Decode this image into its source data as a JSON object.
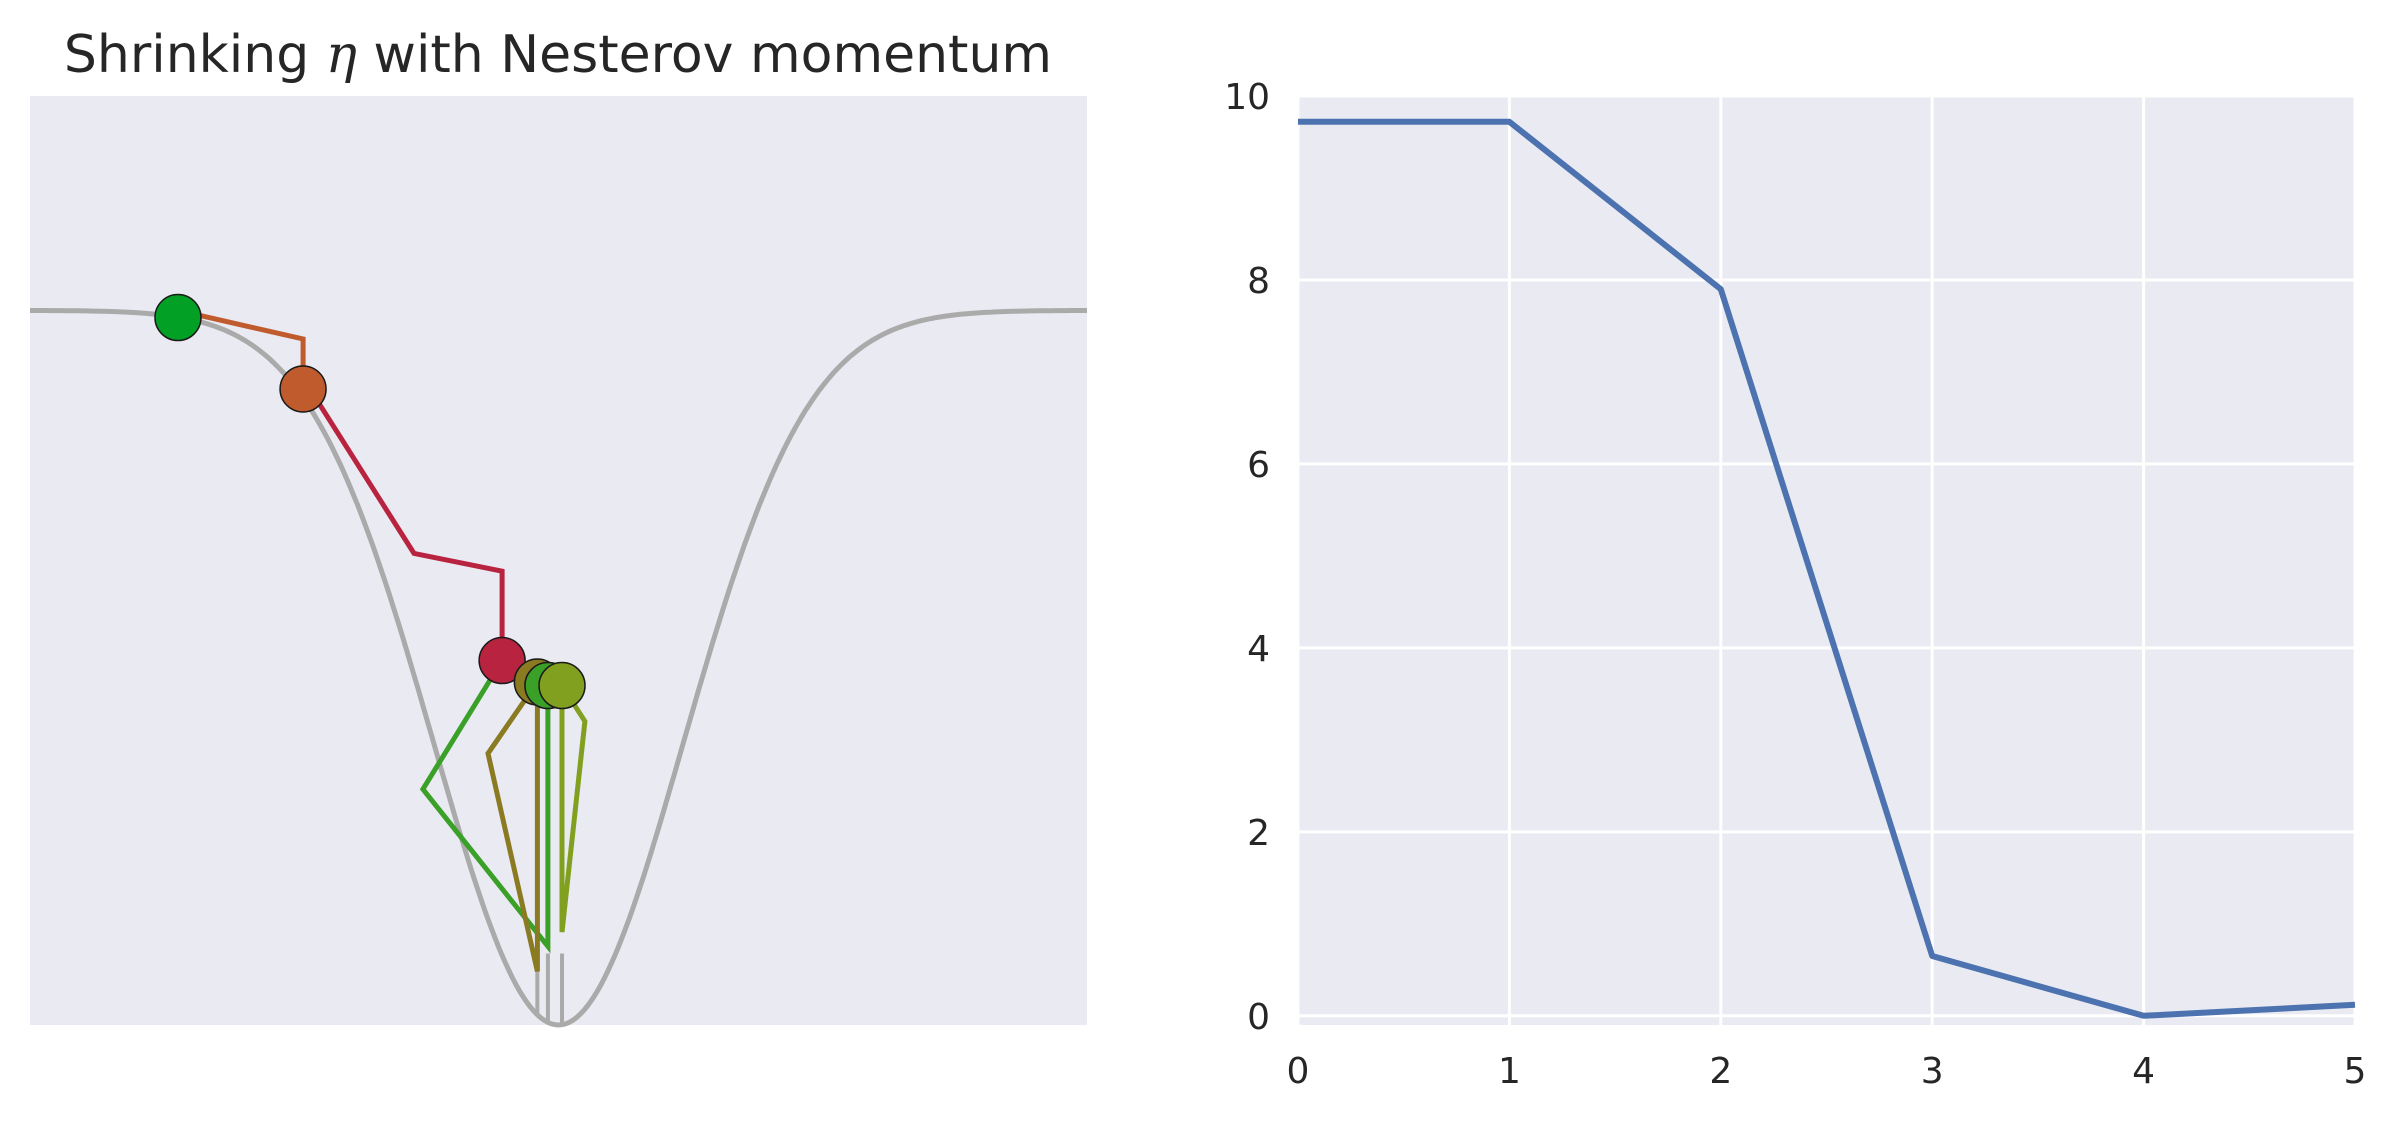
{
  "chart_data": [
    {
      "type": "line",
      "title_prefix": "Shrinking ",
      "title_symbol": "η",
      "title_suffix": " with Nesterov momentum",
      "xlabel": "",
      "ylabel": "",
      "grid": false,
      "xlim": [
        -3.0,
        3.0
      ],
      "ylim": [
        -1.0,
        0.3
      ],
      "curve": {
        "name": "",
        "color": "#aaaaaa",
        "function": "-exp(-x^2)",
        "x_range": [
          -3.0,
          3.0
        ]
      },
      "segments": [
        {
          "color": "#bf5b2c",
          "points": [
            [
              -2.16,
              0.0
            ],
            [
              -1.45,
              -0.04
            ],
            [
              -1.45,
              -0.095
            ]
          ]
        },
        {
          "color": "#b8233f",
          "points": [
            [
              -1.45,
              -0.095
            ],
            [
              -0.82,
              -0.34
            ],
            [
              -0.32,
              -0.365
            ],
            [
              -0.32,
              -0.49
            ]
          ]
        },
        {
          "color": "#3aa027",
          "points": [
            [
              -0.32,
              -0.49
            ],
            [
              -0.77,
              -0.67
            ],
            [
              -0.06,
              -0.89
            ],
            [
              -0.06,
              -0.52
            ]
          ]
        },
        {
          "color": "#8a7a22",
          "points": [
            [
              -0.12,
              -0.52
            ],
            [
              -0.4,
              -0.62
            ],
            [
              -0.12,
              -0.925
            ],
            [
              -0.12,
              -0.52
            ]
          ]
        },
        {
          "color": "#82a020",
          "points": [
            [
              0.02,
              -0.525
            ],
            [
              0.15,
              -0.575
            ],
            [
              0.02,
              -0.87
            ],
            [
              0.02,
              -0.525
            ]
          ]
        }
      ],
      "guides": {
        "color": "#aaaaaa",
        "x": [
          -0.32,
          -0.12,
          -0.06,
          0.02
        ]
      },
      "markers": [
        {
          "x": -2.16,
          "y": -0.01,
          "color": "#03a026"
        },
        {
          "x": -1.45,
          "y": -0.11,
          "color": "#bf5b2c"
        },
        {
          "x": -0.32,
          "y": -0.49,
          "color": "#b8233f"
        },
        {
          "x": -0.12,
          "y": -0.52,
          "color": "#8a7a22"
        },
        {
          "x": -0.06,
          "y": -0.525,
          "color": "#3aa027"
        },
        {
          "x": 0.02,
          "y": -0.525,
          "color": "#82a020"
        }
      ],
      "colors": {
        "background": "#eaeaf2"
      }
    },
    {
      "type": "line",
      "title": "",
      "xlabel": "",
      "ylabel": "",
      "grid": true,
      "xlim": [
        0,
        5
      ],
      "ylim": [
        -0.1,
        10
      ],
      "xticks": [
        "0",
        "1",
        "2",
        "3",
        "4",
        "5"
      ],
      "yticks": [
        "0",
        "2",
        "4",
        "6",
        "8",
        "10"
      ],
      "x": [
        0,
        1,
        2,
        3,
        4,
        5
      ],
      "series": [
        {
          "values": [
            9.72,
            9.72,
            7.9,
            0.65,
            0.0,
            0.12
          ]
        }
      ],
      "colors": {
        "line": "#4c72b0",
        "background": "#eaeaf2",
        "grid": "#ffffff"
      }
    }
  ]
}
